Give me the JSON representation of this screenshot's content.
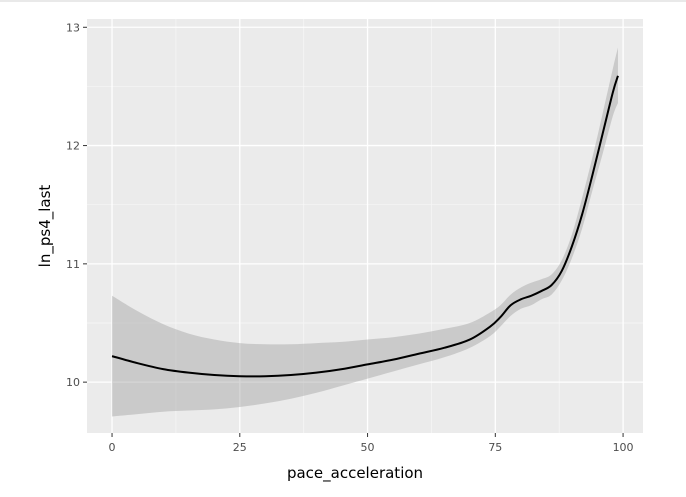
{
  "chart_data": {
    "type": "line",
    "title": "",
    "xlabel": "pace_acceleration",
    "ylabel": "ln_ps4_last",
    "xlim": [
      -4.9,
      103.9
    ],
    "ylim": [
      9.57,
      13.07
    ],
    "x_ticks": [
      0,
      25,
      50,
      75,
      100
    ],
    "y_ticks": [
      10,
      11,
      12,
      13
    ],
    "x_tick_labels": [
      "0",
      "25",
      "50",
      "75",
      "100"
    ],
    "y_tick_labels": [
      "10",
      "11",
      "12",
      "13"
    ],
    "grid": true,
    "legend": "none",
    "series": [
      {
        "kind": "smooth",
        "x": [
          0,
          5,
          10,
          15,
          20,
          25,
          30,
          35,
          40,
          45,
          50,
          55,
          60,
          65,
          70,
          74,
          76,
          78,
          80,
          82,
          84,
          86,
          88,
          90,
          92,
          94,
          96,
          98,
          99
        ],
        "y": [
          10.22,
          10.16,
          10.11,
          10.08,
          10.06,
          10.05,
          10.05,
          10.06,
          10.08,
          10.11,
          10.15,
          10.19,
          10.24,
          10.29,
          10.36,
          10.47,
          10.55,
          10.65,
          10.7,
          10.73,
          10.77,
          10.82,
          10.94,
          11.15,
          11.42,
          11.75,
          12.1,
          12.45,
          12.59
        ],
        "ymin": [
          9.71,
          9.73,
          9.75,
          9.76,
          9.77,
          9.79,
          9.82,
          9.86,
          9.91,
          9.97,
          10.03,
          10.09,
          10.15,
          10.21,
          10.29,
          10.39,
          10.47,
          10.56,
          10.62,
          10.65,
          10.7,
          10.74,
          10.86,
          11.05,
          11.3,
          11.62,
          11.93,
          12.25,
          12.36
        ],
        "ymax": [
          10.73,
          10.6,
          10.49,
          10.41,
          10.36,
          10.33,
          10.32,
          10.32,
          10.33,
          10.34,
          10.36,
          10.38,
          10.41,
          10.45,
          10.5,
          10.59,
          10.65,
          10.74,
          10.8,
          10.84,
          10.87,
          10.91,
          11.03,
          11.25,
          11.56,
          11.9,
          12.27,
          12.65,
          12.83
        ]
      }
    ]
  }
}
